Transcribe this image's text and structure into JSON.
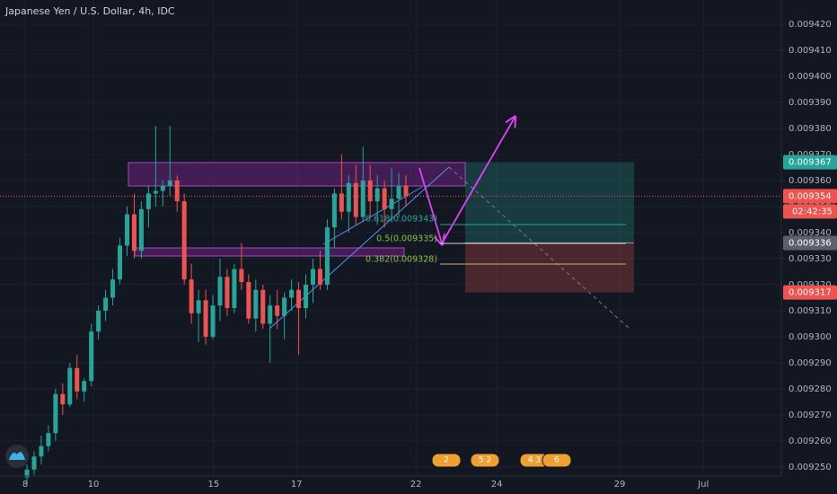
{
  "chart_data": {
    "type": "candlestick",
    "title": "Japanese Yen / U.S. Dollar, 4h, IDC",
    "open": [
      0.009246,
      0.009249,
      0.009254,
      0.009258,
      0.009263,
      0.009278,
      0.009274,
      0.009288,
      0.009279,
      0.009283,
      0.009302,
      0.00931,
      0.009315,
      0.009322,
      0.009335,
      0.009347,
      0.009333,
      0.009349,
      0.009355,
      0.009356,
      0.009358,
      0.00936,
      0.009352,
      0.009322,
      0.009309,
      0.009314,
      0.0093,
      0.009312,
      0.009323,
      0.009311,
      0.009326,
      0.009321,
      0.009307,
      0.009318,
      0.009305,
      0.009312,
      0.009308,
      0.009315,
      0.009318,
      0.009311,
      0.00932,
      0.009326,
      0.00932,
      0.009342,
      0.009355,
      0.009348,
      0.009359,
      0.009346,
      0.00936,
      0.009352,
      0.009357,
      0.009349,
      0.009353,
      0.009358
    ],
    "high": [
      0.009251,
      0.009256,
      0.009262,
      0.009266,
      0.00928,
      0.009282,
      0.00929,
      0.009293,
      0.009284,
      0.009305,
      0.009312,
      0.009318,
      0.009326,
      0.009338,
      0.00935,
      0.009355,
      0.009352,
      0.009358,
      0.009381,
      0.00936,
      0.009381,
      0.009362,
      0.009355,
      0.009328,
      0.009318,
      0.009318,
      0.009316,
      0.00933,
      0.009326,
      0.009328,
      0.009336,
      0.009324,
      0.009322,
      0.00932,
      0.009316,
      0.009318,
      0.009317,
      0.009322,
      0.009321,
      0.009324,
      0.00933,
      0.009333,
      0.009345,
      0.009357,
      0.00937,
      0.009362,
      0.009366,
      0.009373,
      0.009366,
      0.009362,
      0.00936,
      0.009365,
      0.009363,
      0.009362
    ],
    "low": [
      0.009243,
      0.009247,
      0.009251,
      0.009256,
      0.00926,
      0.00927,
      0.009273,
      0.009276,
      0.009275,
      0.009281,
      0.009299,
      0.009306,
      0.009312,
      0.00932,
      0.009331,
      0.00933,
      0.00933,
      0.009342,
      0.00935,
      0.00935,
      0.009354,
      0.009348,
      0.00932,
      0.009305,
      0.009298,
      0.009297,
      0.009299,
      0.009306,
      0.009308,
      0.009309,
      0.009318,
      0.009305,
      0.009302,
      0.009303,
      0.00929,
      0.009303,
      0.009299,
      0.00931,
      0.009293,
      0.009307,
      0.009313,
      0.009318,
      0.009318,
      0.009334,
      0.009345,
      0.00934,
      0.009343,
      0.009344,
      0.009346,
      0.009343,
      0.009342,
      0.009344,
      0.009346,
      0.00935
    ],
    "close": [
      0.009249,
      0.009254,
      0.009258,
      0.009263,
      0.009278,
      0.009274,
      0.009288,
      0.009279,
      0.009283,
      0.009302,
      0.00931,
      0.009315,
      0.009322,
      0.009335,
      0.009347,
      0.009333,
      0.009349,
      0.009355,
      0.009356,
      0.009358,
      0.00936,
      0.009352,
      0.009322,
      0.009309,
      0.009314,
      0.0093,
      0.009312,
      0.009323,
      0.009311,
      0.009326,
      0.009321,
      0.009307,
      0.009318,
      0.009305,
      0.009312,
      0.009308,
      0.009315,
      0.009318,
      0.009311,
      0.00932,
      0.009326,
      0.00932,
      0.009342,
      0.009355,
      0.009348,
      0.009359,
      0.009346,
      0.00936,
      0.009352,
      0.009357,
      0.009349,
      0.009353,
      0.009358,
      0.009354
    ],
    "up_color": "#26a69a",
    "down_color": "#ef5350",
    "xlim": [
      -3.77,
      105.5
    ],
    "xticks": [
      {
        "value": -0.25,
        "label": "8"
      },
      {
        "value": 9.3,
        "label": "10"
      },
      {
        "value": 26.1,
        "label": "15"
      },
      {
        "value": 37.7,
        "label": "17"
      },
      {
        "value": 54.4,
        "label": "22"
      },
      {
        "value": 65.7,
        "label": "24"
      },
      {
        "value": 82.9,
        "label": "29"
      },
      {
        "value": 94.6,
        "label": "Jul"
      }
    ],
    "ylim": [
      0.0092472,
      0.0094293
    ],
    "yticks": [
      {
        "value": 0.00925,
        "label": "0.009250"
      },
      {
        "value": 0.00926,
        "label": "0.009260"
      },
      {
        "value": 0.00927,
        "label": "0.009270"
      },
      {
        "value": 0.00928,
        "label": "0.009280"
      },
      {
        "value": 0.00929,
        "label": "0.009290"
      },
      {
        "value": 0.0093,
        "label": "0.009300"
      },
      {
        "value": 0.00931,
        "label": "0.009310"
      },
      {
        "value": 0.00932,
        "label": "0.009320"
      },
      {
        "value": 0.00933,
        "label": "0.009330"
      },
      {
        "value": 0.00934,
        "label": "0.009340"
      },
      {
        "value": 0.00935,
        "label": "0.009350"
      },
      {
        "value": 0.00936,
        "label": "0.009360"
      },
      {
        "value": 0.00937,
        "label": "0.009370"
      },
      {
        "value": 0.00938,
        "label": "0.009380"
      },
      {
        "value": 0.00939,
        "label": "0.009390"
      },
      {
        "value": 0.0094,
        "label": "0.009400"
      },
      {
        "value": 0.00941,
        "label": "0.009410"
      },
      {
        "value": 0.00942,
        "label": "0.009420"
      }
    ],
    "grid": true,
    "price_badges": [
      {
        "value": 0.009367,
        "color": "#26a69a"
      },
      {
        "value": 0.009354,
        "color": "#ef5350"
      },
      {
        "value": 0.009336,
        "color": "#5d606b"
      },
      {
        "value": 0.009317,
        "color": "#ef5350"
      }
    ],
    "countdown": "02:42:35",
    "fib_labels": [
      "0.618(0.009343)",
      "0.5(0.009335)",
      "0.382(0.009328)"
    ],
    "events": [
      "2",
      "5 2",
      "4 3",
      "6"
    ]
  }
}
